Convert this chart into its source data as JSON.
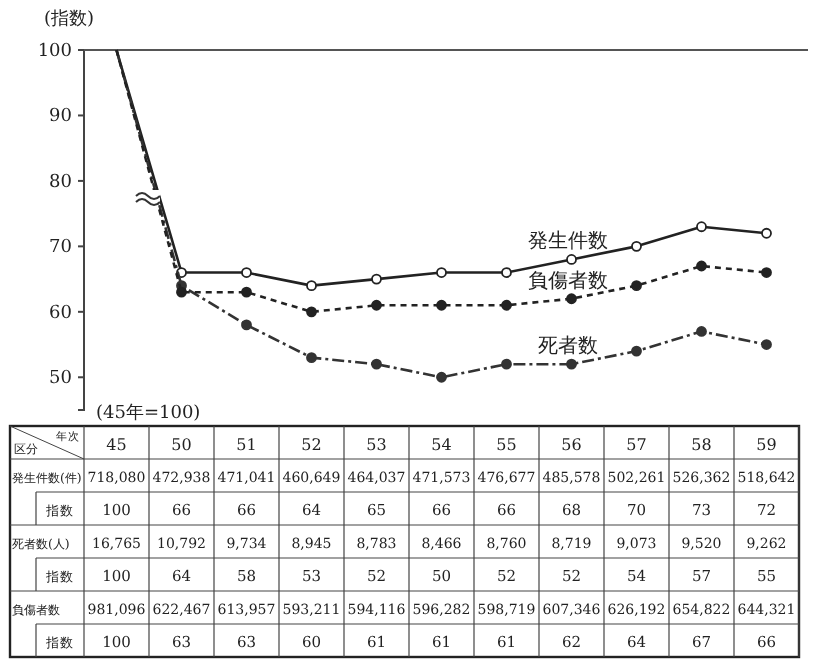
{
  "chart_data": {
    "type": "line",
    "ylabel": "(指数)",
    "categories": [
      "45",
      "50",
      "51",
      "52",
      "53",
      "54",
      "55",
      "56",
      "57",
      "58",
      "59"
    ],
    "series": [
      {
        "name": "発生件数",
        "color": "#222222",
        "line_style": "solid",
        "marker": "circle",
        "values": [
          100,
          66,
          66,
          64,
          65,
          66,
          66,
          68,
          70,
          73,
          72
        ]
      },
      {
        "name": "死者数",
        "color": "#333333",
        "line_style": "dashed",
        "marker": "circle",
        "values": [
          100,
          64,
          58,
          53,
          52,
          50,
          52,
          52,
          54,
          57,
          55
        ]
      },
      {
        "name": "負傷者数",
        "color": "#222222",
        "line_style": "dotted",
        "marker": "circle",
        "values": [
          100,
          63,
          63,
          60,
          61,
          61,
          61,
          62,
          64,
          67,
          66
        ]
      }
    ],
    "ylim": [
      45,
      100
    ],
    "yticks": [
      50,
      60,
      70,
      80,
      90,
      100
    ],
    "data_labels": true,
    "annotations": [
      "(45年=100)",
      "区分",
      "年次",
      "発生件数(件)",
      "死者数(人)",
      "負傷者数",
      "指数",
      "718,080",
      "472,938",
      "471,041",
      "460,649",
      "464,037",
      "471,573",
      "476,677",
      "485,578",
      "502,261",
      "526,362",
      "518,642",
      "16,765",
      "10,792",
      "9,734",
      "8,945",
      "8,783",
      "8,466",
      "8,760",
      "8,719",
      "9,073",
      "9,520",
      "9,262",
      "981,096",
      "622,467",
      "613,957",
      "593,211",
      "594,116",
      "596,282",
      "598,719",
      "607,346",
      "626,192",
      "654,822",
      "644,321"
    ]
  }
}
